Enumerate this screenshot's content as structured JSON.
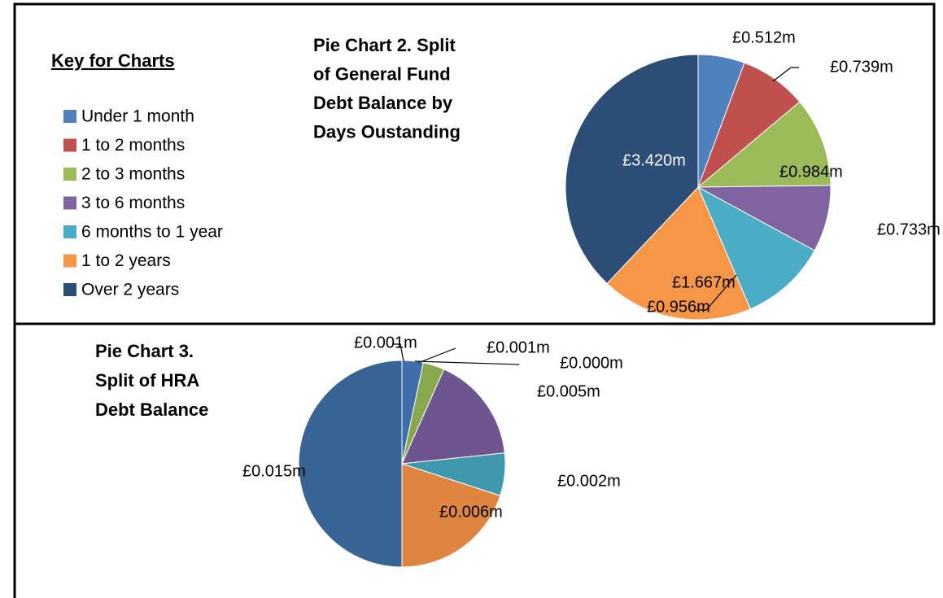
{
  "key": {
    "title": "Key for Charts",
    "items": [
      {
        "name": "Under 1 month",
        "color": "#4f81bd"
      },
      {
        "name": "1 to 2 months",
        "color": "#c0504d"
      },
      {
        "name": "2 to 3 months",
        "color": "#9bbb59"
      },
      {
        "name": "3 to 6 months",
        "color": "#8064a2"
      },
      {
        "name": "6 months to 1 year",
        "color": "#4bacc6"
      },
      {
        "name": "1 to 2 years",
        "color": "#f79646"
      },
      {
        "name": "Over 2 years",
        "color": "#2c4d75"
      }
    ]
  },
  "chart_data": [
    {
      "type": "pie",
      "title": [
        "Pie Chart 2. Split",
        "of General Fund",
        "Debt Balance by",
        "Days Oustanding"
      ],
      "values": [
        0.512,
        0.739,
        0.984,
        0.733,
        0.956,
        1.667,
        3.42
      ],
      "value_labels": [
        "£0.512m",
        "£0.739m",
        "£0.984m",
        "£0.733m",
        "£0.956m",
        "£1.667m",
        "£3.420m"
      ],
      "colors": [
        "#4f81bd",
        "#c0504d",
        "#9bbb59",
        "#8064a2",
        "#4bacc6",
        "#f79646",
        "#2c4d75"
      ]
    },
    {
      "type": "pie",
      "title": [
        "Pie Chart 3.",
        "Split of HRA",
        "Debt Balance"
      ],
      "values": [
        0.001,
        0.0,
        0.001,
        0.005,
        0.002,
        0.006,
        0.015
      ],
      "value_labels": [
        "£0.001m",
        "£0.000m",
        "£0.001m",
        "£0.005m",
        "£0.002m",
        "£0.006m",
        "£0.015m"
      ],
      "colors": [
        "#3f6eab",
        "#b34a47",
        "#88a84e",
        "#6f5590",
        "#3f98ae",
        "#df8540",
        "#386395"
      ]
    }
  ]
}
